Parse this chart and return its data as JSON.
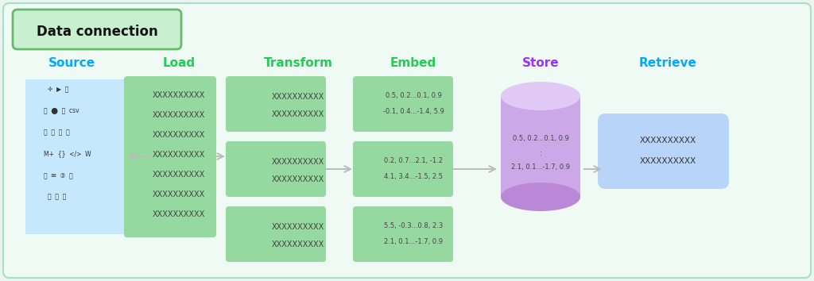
{
  "bg_outer": "#e8f5f0",
  "bg_inner": "#f0faf5",
  "title": "Data connection",
  "title_bg": "#c8f0d0",
  "title_border": "#66bb6a",
  "stage_labels": [
    "Source",
    "Load",
    "Transform",
    "Embed",
    "Store",
    "Retrieve"
  ],
  "stage_colors": [
    "#00aaff",
    "#22cc55",
    "#22cc55",
    "#22cc55",
    "#9933ff",
    "#00aaff"
  ],
  "source_box_color": "#c5e8fc",
  "load_box_color": "#96d9a0",
  "transform_box_color": "#96d9a0",
  "embed_box_color": "#96d9a0",
  "store_body_color": "#cca8e8",
  "store_top_color": "#e0caf5",
  "store_bottom_color": "#bb88d8",
  "retrieve_box_color": "#b8d4f8",
  "arrow_color": "#bbbbbb",
  "text_color": "#444444",
  "xtext": "XXXXXXXXXX",
  "embed_texts": [
    [
      "0.5, 0.2...0.1, 0.9",
      "-0.1, 0.4...-1.4, 5.9"
    ],
    [
      "0.2, 0.7...2.1, -1.2",
      "4.1, 3.4...-1.5, 2.5"
    ],
    [
      "5.5, -0.3...0.8, 2.3",
      "2.1, 0.1...-1.7, 0.9"
    ]
  ],
  "store_texts": [
    "0.5, 0.2...0.1, 0.9",
    ":",
    "2.1, 0.1...-1.7, 0.9"
  ]
}
